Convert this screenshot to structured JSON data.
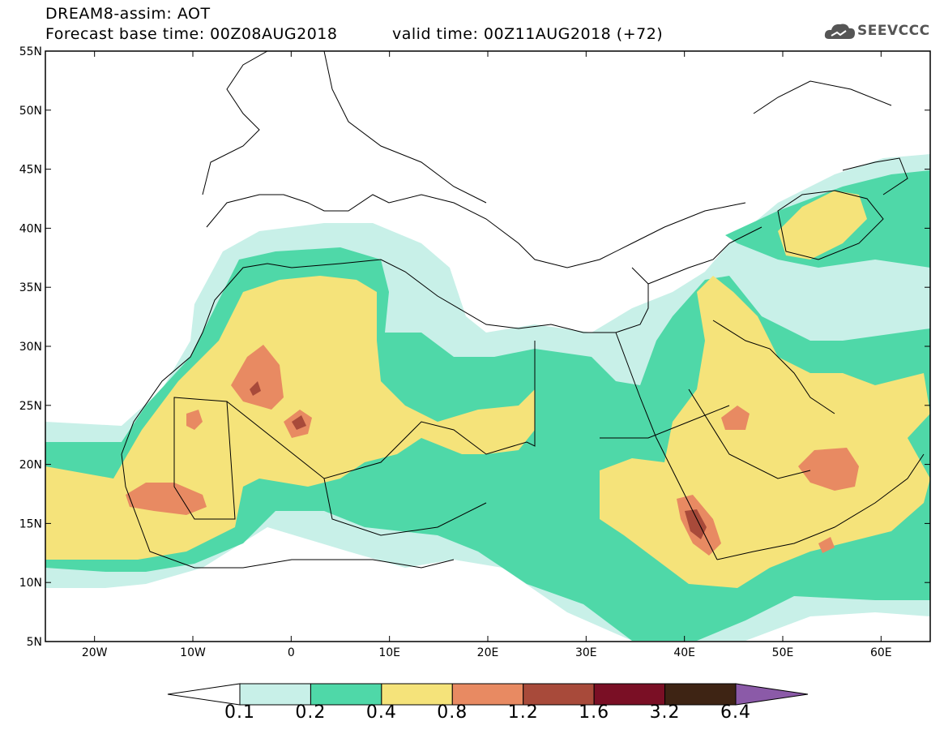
{
  "header": {
    "title": "DREAM8-assim: AOT",
    "base_time": "Forecast base time: 00Z08AUG2018",
    "valid_time": "valid time: 00Z11AUG2018 (+72)",
    "logo_text": "SEEVCCC"
  },
  "axes": {
    "lon_min": -25,
    "lon_max": 65,
    "lat_min": 5,
    "lat_max": 55,
    "lon_ticks": [
      {
        "v": -20,
        "label": "20W"
      },
      {
        "v": -10,
        "label": "10W"
      },
      {
        "v": 0,
        "label": "0"
      },
      {
        "v": 10,
        "label": "10E"
      },
      {
        "v": 20,
        "label": "20E"
      },
      {
        "v": 30,
        "label": "30E"
      },
      {
        "v": 40,
        "label": "40E"
      },
      {
        "v": 50,
        "label": "50E"
      },
      {
        "v": 60,
        "label": "60E"
      }
    ],
    "lat_ticks": [
      {
        "v": 5,
        "label": "5N"
      },
      {
        "v": 10,
        "label": "10N"
      },
      {
        "v": 15,
        "label": "15N"
      },
      {
        "v": 20,
        "label": "20N"
      },
      {
        "v": 25,
        "label": "25N"
      },
      {
        "v": 30,
        "label": "30N"
      },
      {
        "v": 35,
        "label": "35N"
      },
      {
        "v": 40,
        "label": "40N"
      },
      {
        "v": 45,
        "label": "45N"
      },
      {
        "v": 50,
        "label": "50N"
      },
      {
        "v": 55,
        "label": "55N"
      }
    ]
  },
  "colorbar": {
    "labels": [
      "0.1",
      "0.2",
      "0.4",
      "0.8",
      "1.2",
      "1.6",
      "3.2",
      "6.4"
    ],
    "colors": [
      "#c8f0e8",
      "#4fd8a8",
      "#f5e37a",
      "#e88a62",
      "#a84a3a",
      "#7a0f25",
      "#3e2414",
      "#8b5aa8"
    ]
  }
}
